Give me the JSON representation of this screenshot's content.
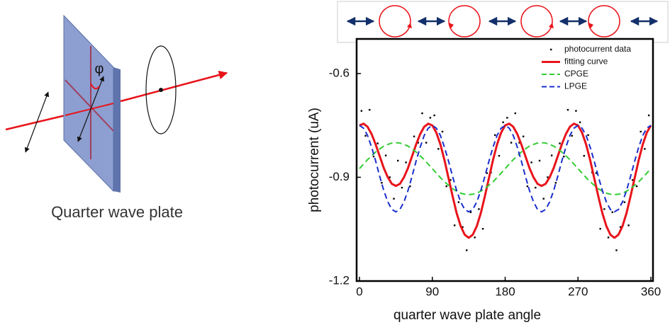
{
  "diagram": {
    "angle_symbol": "φ",
    "caption": "Quarter wave plate"
  },
  "chart_data": {
    "type": "line",
    "x_label": "quarter wave plate angle",
    "y_label": "photocurrent (uA)",
    "xlim": [
      0,
      360
    ],
    "ylim": [
      -1.2,
      -0.5
    ],
    "xticks": [
      0,
      90,
      180,
      270,
      360
    ],
    "yticks": [
      -0.6,
      -0.9,
      -1.2
    ],
    "legend": "top-right",
    "x": [
      0,
      5,
      10,
      15,
      20,
      25,
      30,
      35,
      40,
      45,
      50,
      55,
      60,
      65,
      70,
      75,
      80,
      85,
      90,
      95,
      100,
      105,
      110,
      115,
      120,
      125,
      130,
      135,
      140,
      145,
      150,
      155,
      160,
      165,
      170,
      175,
      180,
      185,
      190,
      195,
      200,
      205,
      210,
      215,
      220,
      225,
      230,
      235,
      240,
      245,
      250,
      255,
      260,
      265,
      270,
      275,
      280,
      285,
      290,
      295,
      300,
      305,
      310,
      315,
      320,
      325,
      330,
      335,
      340,
      345,
      350,
      355,
      360
    ],
    "series": [
      {
        "name": "photocurrent data",
        "color": "#000000",
        "mode": "markers",
        "x": [
          2.5,
          7.5,
          12.5,
          17.5,
          22.5,
          27.5,
          32.5,
          37.5,
          42.5,
          47.5,
          52.5,
          57.5,
          62.5,
          67.5,
          72.5,
          77.5,
          82.5,
          87.5,
          92.5,
          97.5,
          102.5,
          107.5,
          112.5,
          117.5,
          122.5,
          127.5,
          132.5,
          137.5,
          142.5,
          147.5,
          152.5,
          157.5,
          162.5,
          167.5,
          172.5,
          177.5,
          182.5,
          187.5,
          192.5,
          197.5,
          202.5,
          207.5,
          212.5,
          217.5,
          222.5,
          227.5,
          232.5,
          237.5,
          242.5,
          247.5,
          252.5,
          257.5,
          262.5,
          267.5,
          272.5,
          277.5,
          282.5,
          287.5,
          292.5,
          297.5,
          302.5,
          307.5,
          312.5,
          317.5,
          322.5,
          327.5,
          332.5,
          337.5,
          342.5,
          347.5,
          352.5,
          357.5
        ],
        "values": [
          -0.708,
          -0.78,
          -0.705,
          -0.84,
          -0.802,
          -0.916,
          -0.837,
          -0.9,
          -0.962,
          -0.852,
          -0.93,
          -0.857,
          -0.926,
          -0.782,
          -0.8,
          -0.715,
          -0.8,
          -0.728,
          -0.721,
          -0.818,
          -0.768,
          -0.926,
          -0.908,
          -1.039,
          -0.972,
          -1.044,
          -1.111,
          -1.001,
          -1.074,
          -0.992,
          -1.049,
          -0.888,
          -0.886,
          -0.778,
          -0.838,
          -0.741,
          -0.728,
          -0.8,
          -0.715,
          -0.8,
          -0.782,
          -0.926,
          -0.857,
          -0.93,
          -0.852,
          -0.962,
          -0.9,
          -0.837,
          -0.916,
          -0.802,
          -0.84,
          -0.705,
          -0.78,
          -0.708,
          -0.741,
          -0.838,
          -0.778,
          -0.886,
          -0.888,
          -1.049,
          -0.992,
          -1.074,
          -1.001,
          -1.111,
          -1.044,
          -0.972,
          -1.039,
          -0.908,
          -0.926,
          -0.768,
          -0.818,
          -0.721
        ]
      },
      {
        "name": "fitting curve",
        "color": "#e8141b",
        "mode": "line",
        "width": 3,
        "values": [
          -0.75,
          -0.745,
          -0.754,
          -0.775,
          -0.805,
          -0.839,
          -0.873,
          -0.9,
          -0.919,
          -0.925,
          -0.919,
          -0.9,
          -0.873,
          -0.839,
          -0.805,
          -0.775,
          -0.754,
          -0.745,
          -0.75,
          -0.771,
          -0.805,
          -0.85,
          -0.902,
          -0.954,
          -1.003,
          -1.041,
          -1.066,
          -1.075,
          -1.066,
          -1.041,
          -1.003,
          -0.954,
          -0.902,
          -0.85,
          -0.805,
          -0.771,
          -0.75,
          -0.745,
          -0.754,
          -0.775,
          -0.805,
          -0.839,
          -0.873,
          -0.9,
          -0.919,
          -0.925,
          -0.919,
          -0.9,
          -0.873,
          -0.839,
          -0.805,
          -0.775,
          -0.754,
          -0.745,
          -0.75,
          -0.771,
          -0.805,
          -0.85,
          -0.902,
          -0.954,
          -1.003,
          -1.041,
          -1.066,
          -1.075,
          -1.066,
          -1.041,
          -1.003,
          -0.954,
          -0.902,
          -0.85,
          -0.805,
          -0.771,
          -0.75
        ]
      },
      {
        "name": "CPGE",
        "color": "#33cc33",
        "mode": "line",
        "dash": true,
        "width": 2,
        "values": [
          -0.875,
          -0.862,
          -0.849,
          -0.838,
          -0.827,
          -0.818,
          -0.81,
          -0.805,
          -0.801,
          -0.8,
          -0.801,
          -0.805,
          -0.81,
          -0.818,
          -0.827,
          -0.838,
          -0.849,
          -0.862,
          -0.875,
          -0.888,
          -0.901,
          -0.913,
          -0.923,
          -0.933,
          -0.94,
          -0.946,
          -0.949,
          -0.95,
          -0.949,
          -0.946,
          -0.94,
          -0.933,
          -0.923,
          -0.913,
          -0.901,
          -0.888,
          -0.875,
          -0.862,
          -0.849,
          -0.838,
          -0.827,
          -0.818,
          -0.81,
          -0.805,
          -0.801,
          -0.8,
          -0.801,
          -0.805,
          -0.81,
          -0.818,
          -0.827,
          -0.838,
          -0.849,
          -0.862,
          -0.875,
          -0.888,
          -0.901,
          -0.913,
          -0.923,
          -0.933,
          -0.94,
          -0.946,
          -0.949,
          -0.95,
          -0.949,
          -0.946,
          -0.94,
          -0.933,
          -0.923,
          -0.913,
          -0.901,
          -0.888,
          -0.875
        ]
      },
      {
        "name": "LPGE",
        "color": "#1a2fcc",
        "mode": "line",
        "dash": true,
        "width": 2,
        "values": [
          -0.75,
          -0.758,
          -0.779,
          -0.813,
          -0.853,
          -0.897,
          -0.938,
          -0.971,
          -0.993,
          -1.0,
          -0.993,
          -0.971,
          -0.938,
          -0.897,
          -0.853,
          -0.813,
          -0.779,
          -0.758,
          -0.75,
          -0.758,
          -0.779,
          -0.813,
          -0.853,
          -0.897,
          -0.938,
          -0.971,
          -0.993,
          -1.0,
          -0.993,
          -0.971,
          -0.938,
          -0.897,
          -0.853,
          -0.813,
          -0.779,
          -0.758,
          -0.75,
          -0.758,
          -0.779,
          -0.813,
          -0.853,
          -0.897,
          -0.938,
          -0.971,
          -0.993,
          -1.0,
          -0.993,
          -0.971,
          -0.938,
          -0.897,
          -0.853,
          -0.813,
          -0.779,
          -0.758,
          -0.75,
          -0.758,
          -0.779,
          -0.813,
          -0.853,
          -0.897,
          -0.938,
          -0.971,
          -0.993,
          -1.0,
          -0.993,
          -0.971,
          -0.938,
          -0.897,
          -0.853,
          -0.813,
          -0.779,
          -0.758,
          -0.75
        ]
      }
    ]
  }
}
